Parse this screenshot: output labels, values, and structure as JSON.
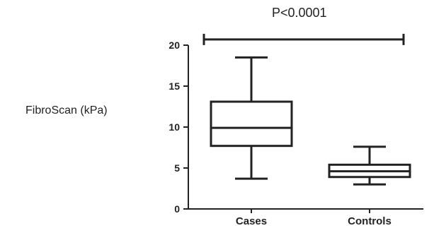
{
  "chart_data": {
    "type": "box",
    "title": "",
    "xlabel": "",
    "ylabel": "FibroScan (kPa)",
    "ylim": [
      0,
      20
    ],
    "yticks": [
      "0",
      "5",
      "10",
      "15",
      "20"
    ],
    "grid": false,
    "categories": [
      "Cases",
      "Controls"
    ],
    "boxes": [
      {
        "category": "Cases",
        "min": 3.7,
        "q1": 7.7,
        "median": 9.9,
        "q3": 13.1,
        "max": 18.5
      },
      {
        "category": "Controls",
        "min": 3.0,
        "q1": 3.9,
        "median": 4.6,
        "q3": 5.4,
        "max": 7.6
      }
    ],
    "annotation": {
      "text": "P<0.0001",
      "between": [
        "Cases",
        "Controls"
      ],
      "y_value": 20.7
    }
  },
  "colors": {
    "stroke": "#222222",
    "background": "#ffffff"
  }
}
